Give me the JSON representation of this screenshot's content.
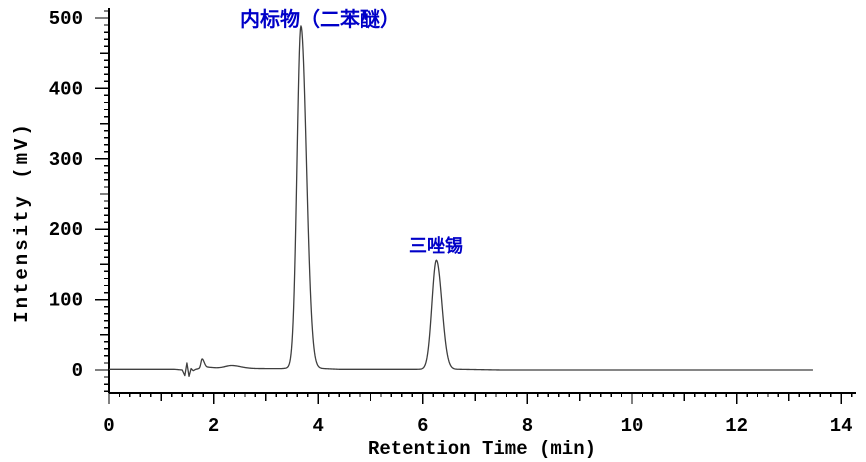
{
  "chart_data": {
    "type": "line",
    "title": "",
    "xlabel": "Retention Time (min)",
    "ylabel": "Intensity (mV)",
    "xlim": [
      0,
      14.27
    ],
    "ylim": [
      -33,
      514
    ],
    "grid": false,
    "legend": "none",
    "axis_color": "#000000",
    "trace_color": "#3f3f3f",
    "annotation_color": "#0000c8",
    "x_ticks": {
      "minor_step": 0.2,
      "medium_step": 1,
      "major_step": 2,
      "labels": [
        "0",
        "2",
        "4",
        "6",
        "8",
        "10",
        "12",
        "14"
      ],
      "label_values": [
        0,
        2,
        4,
        6,
        8,
        10,
        12,
        14
      ]
    },
    "y_ticks": {
      "minor_step": 10,
      "medium_step": 50,
      "major_step": 100,
      "labels": [
        "0",
        "100",
        "200",
        "300",
        "400",
        "500"
      ],
      "label_values": [
        0,
        100,
        200,
        300,
        400,
        500
      ]
    },
    "trace_end_min": 13.46,
    "peaks": [
      {
        "name": "internal-standard",
        "label": "内标物（二苯醚）",
        "rt_min": 3.67,
        "height_mV": 486,
        "sigma_left": 0.075,
        "sigma_right": 0.105
      },
      {
        "name": "azocyclotin",
        "label": "三唑锡",
        "rt_min": 6.26,
        "height_mV": 155,
        "sigma_left": 0.085,
        "sigma_right": 0.105
      },
      {
        "name": "baseline-noise-peak",
        "label": "",
        "rt_min": 1.78,
        "height_mV": 13,
        "sigma_left": 0.022,
        "sigma_right": 0.04
      },
      {
        "name": "baseline-bump",
        "label": "",
        "rt_min": 2.35,
        "height_mV": 4,
        "sigma_left": 0.12,
        "sigma_right": 0.18
      }
    ],
    "baseline_points": [
      [
        0,
        1
      ],
      [
        0.8,
        1
      ],
      [
        1.25,
        1
      ],
      [
        1.4,
        0
      ],
      [
        1.45,
        -8
      ],
      [
        1.49,
        10
      ],
      [
        1.53,
        -9
      ],
      [
        1.57,
        2
      ],
      [
        1.61,
        -1
      ],
      [
        1.66,
        1
      ],
      [
        1.72,
        2
      ],
      [
        1.9,
        4
      ],
      [
        2.05,
        3
      ],
      [
        2.55,
        2
      ],
      [
        3.3,
        2
      ],
      [
        3.5,
        3
      ],
      [
        4.1,
        2
      ],
      [
        4.4,
        1
      ],
      [
        5.0,
        1
      ],
      [
        5.8,
        1
      ],
      [
        6.7,
        1
      ],
      [
        7.5,
        0
      ],
      [
        13.46,
        0
      ]
    ]
  }
}
